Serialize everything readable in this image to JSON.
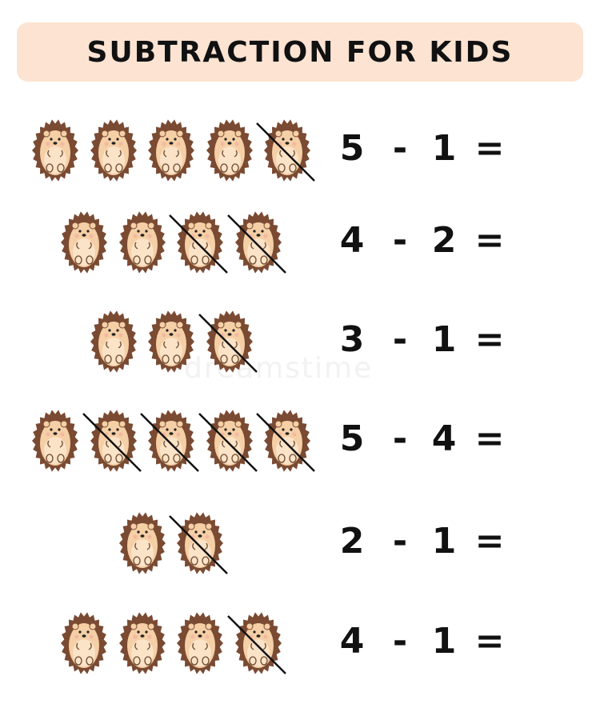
{
  "title": "SUBTRACTION FOR KIDS",
  "watermark": "dreamstime",
  "colors": {
    "title_bg": "#fde3d2",
    "spikes": "#7a4a32",
    "body": "#f5cfa6",
    "belly": "#fbe3c8",
    "cross_line": "#111111"
  },
  "icon": "hedgehog-icon",
  "problems": [
    {
      "minuend": "5",
      "operator": "-",
      "subtrahend": "1",
      "equals": "=",
      "hedgehogs": 5,
      "crossed": 1
    },
    {
      "minuend": "4",
      "operator": "-",
      "subtrahend": "2",
      "equals": "=",
      "hedgehogs": 4,
      "crossed": 2
    },
    {
      "minuend": "3",
      "operator": "-",
      "subtrahend": "1",
      "equals": "=",
      "hedgehogs": 3,
      "crossed": 1
    },
    {
      "minuend": "5",
      "operator": "-",
      "subtrahend": "4",
      "equals": "=",
      "hedgehogs": 5,
      "crossed": 4
    },
    {
      "minuend": "2",
      "operator": "-",
      "subtrahend": "1",
      "equals": "=",
      "hedgehogs": 2,
      "crossed": 1
    },
    {
      "minuend": "4",
      "operator": "-",
      "subtrahend": "1",
      "equals": "=",
      "hedgehogs": 4,
      "crossed": 1
    }
  ]
}
